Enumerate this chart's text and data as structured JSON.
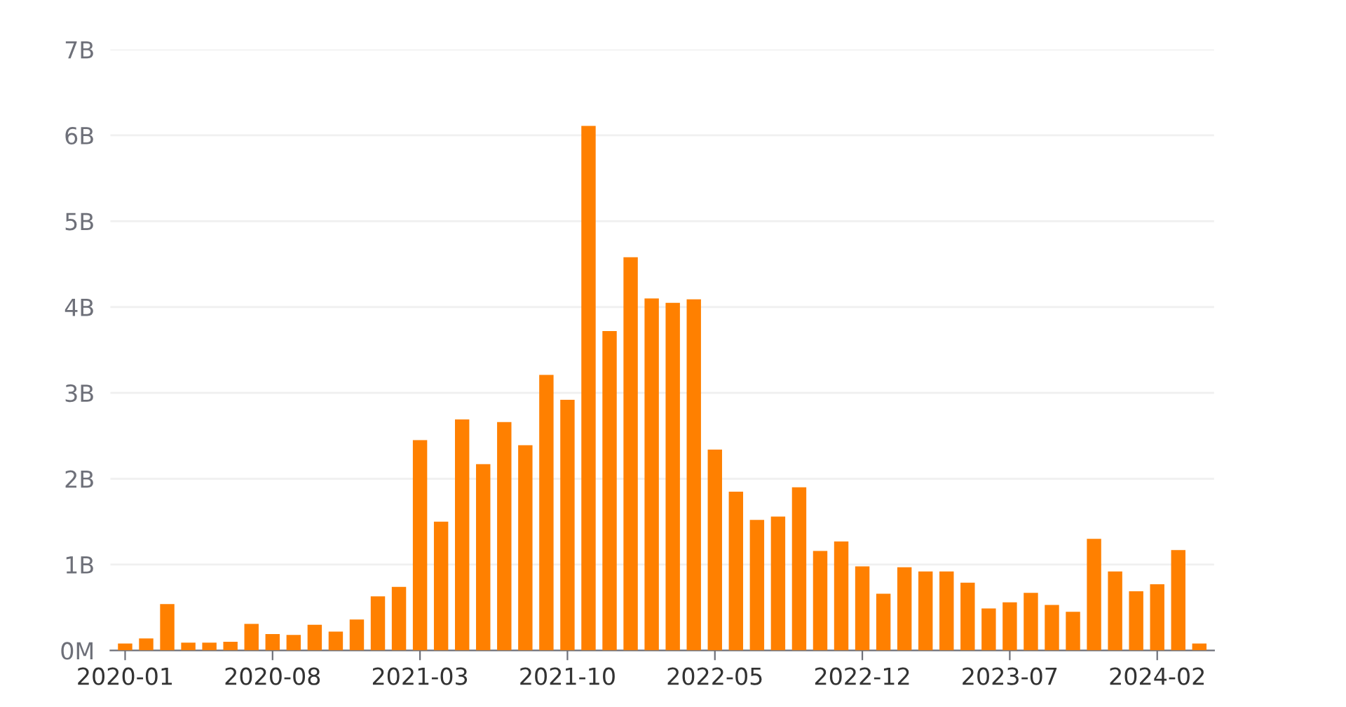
{
  "chart_data": {
    "type": "bar",
    "categories": [
      "2020-01",
      null,
      null,
      null,
      null,
      null,
      null,
      "2020-08",
      null,
      null,
      null,
      null,
      null,
      null,
      "2021-03",
      null,
      null,
      null,
      null,
      null,
      null,
      "2021-10",
      null,
      null,
      null,
      null,
      null,
      null,
      "2022-05",
      null,
      null,
      null,
      null,
      null,
      null,
      "2022-12",
      null,
      null,
      null,
      null,
      null,
      null,
      "2023-07",
      null,
      null,
      null,
      null,
      null,
      null,
      "2024-02",
      null,
      null
    ],
    "values": [
      0.08,
      0.14,
      0.54,
      0.09,
      0.09,
      0.1,
      0.31,
      0.19,
      0.18,
      0.3,
      0.22,
      0.36,
      0.63,
      0.74,
      2.45,
      1.5,
      2.69,
      2.17,
      2.66,
      2.39,
      3.21,
      2.92,
      6.11,
      3.72,
      4.58,
      4.1,
      4.05,
      4.09,
      2.34,
      1.85,
      1.52,
      1.56,
      1.9,
      1.16,
      1.27,
      0.98,
      0.66,
      0.97,
      0.92,
      0.92,
      0.79,
      0.49,
      0.56,
      0.67,
      0.53,
      0.45,
      1.3,
      0.92,
      0.69,
      0.77,
      1.17,
      0.08
    ],
    "color": "#ff8000",
    "ylim": [
      0,
      7
    ],
    "yticks": [
      {
        "value": 0,
        "label": "0M"
      },
      {
        "value": 1,
        "label": "1B"
      },
      {
        "value": 2,
        "label": "2B"
      },
      {
        "value": 3,
        "label": "3B"
      },
      {
        "value": 4,
        "label": "4B"
      },
      {
        "value": 5,
        "label": "5B"
      },
      {
        "value": 6,
        "label": "6B"
      },
      {
        "value": 7,
        "label": "7B"
      }
    ],
    "grid": "y"
  }
}
